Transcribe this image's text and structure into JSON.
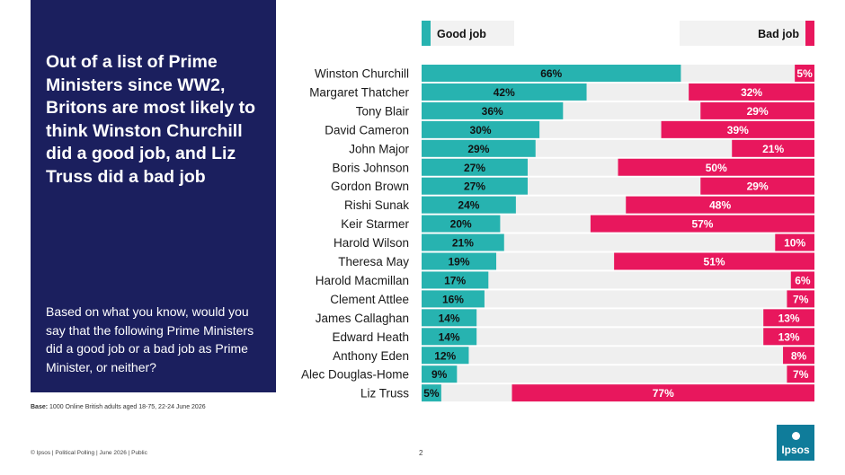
{
  "panel": {
    "headline": "Out of a list of Prime Ministers since WW2, Britons are most likely to think Winston Churchill did a good job, and Liz Truss did a bad job",
    "question": "Based on what you know, would you say that the following Prime Ministers did a good job or a bad job as Prime Minister, or neither?"
  },
  "base": {
    "label": "Base:",
    "text": "1000 Online British adults aged 18-75, 22-24 June 2026"
  },
  "footer": "© Ipsos | Political Polling | June 2026 | Public",
  "page_number": "2",
  "logo_text": "Ipsos",
  "colors": {
    "good": "#27b3b0",
    "bad": "#e8175d",
    "neither": "#efefef",
    "panel": "#1b1f5e"
  },
  "chart_data": {
    "type": "bar",
    "orientation": "horizontal",
    "stacked": true,
    "legend": [
      "Good job",
      "Bad job"
    ],
    "legend_placement": "top",
    "xlim": [
      0,
      100
    ],
    "categories": [
      "Winston Churchill",
      "Margaret Thatcher",
      "Tony Blair",
      "David Cameron",
      "John Major",
      "Boris Johnson",
      "Gordon Brown",
      "Rishi Sunak",
      "Keir Starmer",
      "Harold Wilson",
      "Theresa May",
      "Harold Macmillan",
      "Clement Attlee",
      "James Callaghan",
      "Edward Heath",
      "Anthony Eden",
      "Alec Douglas-Home",
      "Liz Truss"
    ],
    "series": [
      {
        "name": "Good job",
        "values": [
          66,
          42,
          36,
          30,
          29,
          27,
          27,
          24,
          20,
          21,
          19,
          17,
          16,
          14,
          14,
          12,
          9,
          5
        ]
      },
      {
        "name": "Bad job",
        "values": [
          5,
          32,
          29,
          39,
          21,
          50,
          29,
          48,
          57,
          10,
          51,
          6,
          7,
          13,
          13,
          8,
          7,
          77
        ]
      }
    ],
    "value_suffix": "%"
  }
}
